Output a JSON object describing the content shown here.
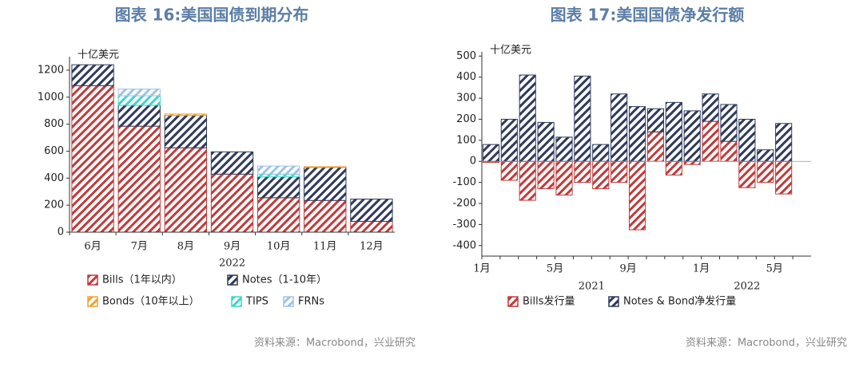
{
  "chart_data": [
    {
      "type": "bar",
      "stacked": true,
      "title": "图表 16:美国国债到期分布",
      "ylabel": "十亿美元",
      "xlabel": "2022",
      "categories": [
        "6月",
        "7月",
        "8月",
        "9月",
        "10月",
        "11月",
        "12月"
      ],
      "series": [
        {
          "name": "Bills（1年以内）",
          "color": "#c23a3a",
          "values": [
            1085,
            785,
            625,
            430,
            255,
            235,
            80
          ]
        },
        {
          "name": "Notes（1-10年）",
          "color": "#2e3a5c",
          "values": [
            155,
            155,
            240,
            165,
            155,
            245,
            165
          ]
        },
        {
          "name": "Bonds（10年以上）",
          "color": "#f0a030",
          "values": [
            0,
            0,
            10,
            0,
            0,
            5,
            0
          ]
        },
        {
          "name": "TIPS",
          "color": "#3fd6c8",
          "values": [
            0,
            70,
            0,
            0,
            20,
            0,
            0
          ]
        },
        {
          "name": "FRNs",
          "color": "#9fc3e6",
          "values": [
            0,
            50,
            0,
            0,
            60,
            0,
            0
          ]
        }
      ],
      "ylim": [
        0,
        1300
      ],
      "yticks": [
        0,
        200,
        400,
        600,
        800,
        1000,
        1200
      ],
      "grid": false,
      "source": "资料来源：Macrobond，兴业研究"
    },
    {
      "type": "bar",
      "stacked": true,
      "title": "图表 17:美国国债净发行额",
      "ylabel": "十亿美元",
      "categories": [
        "1月",
        null,
        null,
        null,
        "5月",
        null,
        null,
        null,
        "9月",
        null,
        null,
        null,
        "1月",
        null,
        null,
        null,
        "5月"
      ],
      "year_labels": [
        "2021",
        "2022"
      ],
      "series": [
        {
          "name": "Bills发行量",
          "color": "#c23a3a",
          "values": [
            -5,
            -90,
            -185,
            -130,
            -160,
            -100,
            -130,
            -100,
            -325,
            140,
            -65,
            -15,
            190,
            95,
            -125,
            -100,
            -155
          ]
        },
        {
          "name": "Notes & Bond净发行量",
          "color": "#2e3a5c",
          "values": [
            80,
            200,
            410,
            185,
            115,
            405,
            80,
            320,
            260,
            110,
            280,
            240,
            130,
            175,
            200,
            55,
            180
          ]
        }
      ],
      "ylim": [
        -450,
        520
      ],
      "yticks": [
        -400,
        -300,
        -200,
        -100,
        0,
        100,
        200,
        300,
        400,
        500
      ],
      "grid": false,
      "source": "资料来源：Macrobond，兴业研究"
    }
  ]
}
